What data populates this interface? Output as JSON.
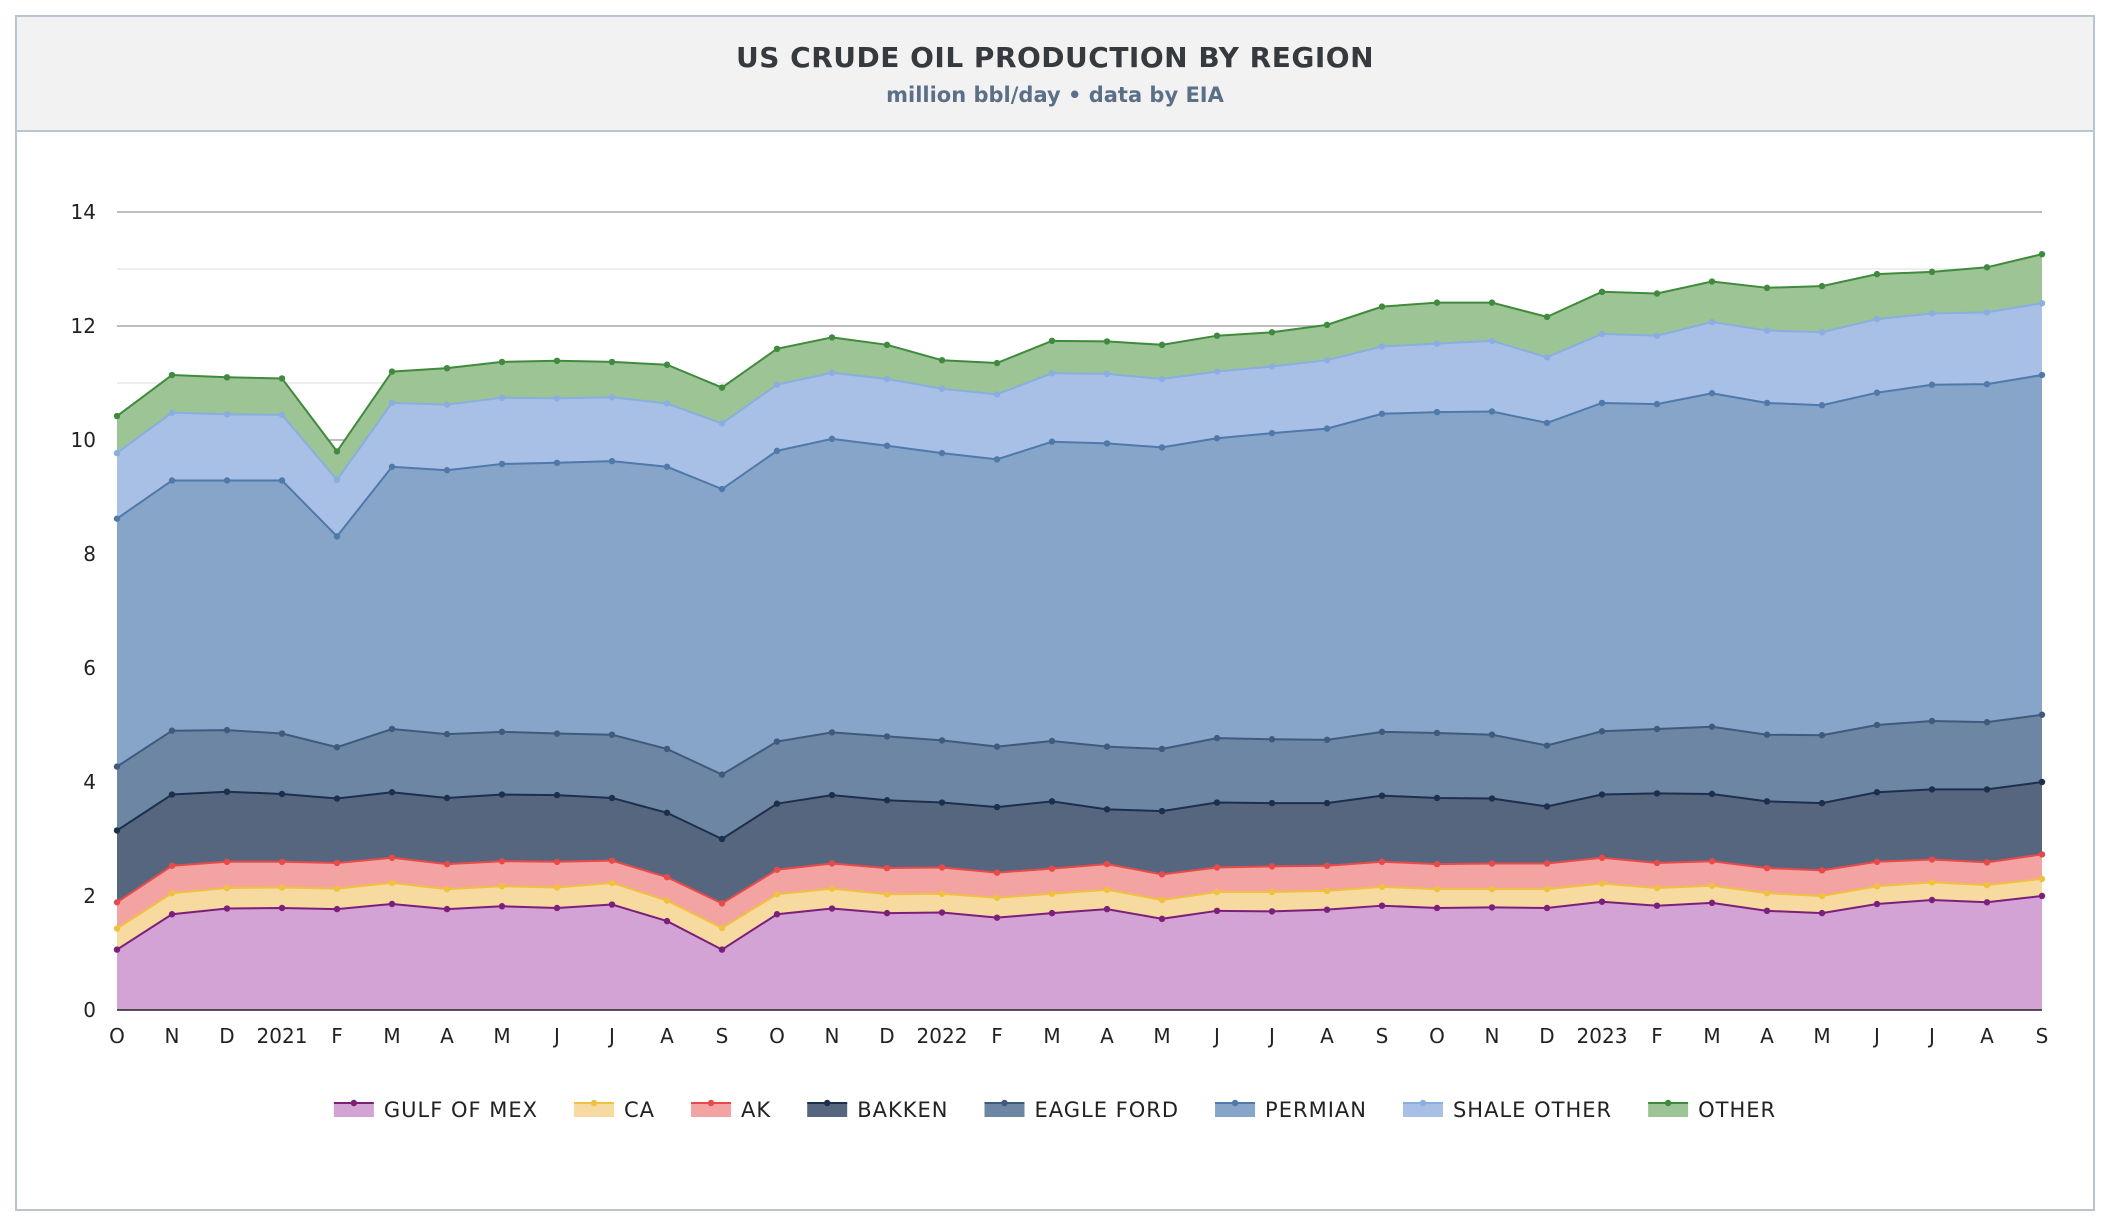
{
  "header": {
    "title": "US CRUDE OIL PRODUCTION BY REGION",
    "subtitle": "million bbl/day • data by EIA"
  },
  "chart_data": {
    "type": "area",
    "stacked": true,
    "title": "US CRUDE OIL PRODUCTION BY REGION",
    "subtitle": "million bbl/day • data by EIA",
    "ylim": [
      0,
      14
    ],
    "y_ticks": [
      0,
      2,
      4,
      6,
      8,
      10,
      12,
      14
    ],
    "grid": true,
    "legend_position": "bottom",
    "categories": [
      "O",
      "N",
      "D",
      "2021",
      "F",
      "M",
      "A",
      "M",
      "J",
      "J",
      "A",
      "S",
      "O",
      "N",
      "D",
      "2022",
      "F",
      "M",
      "A",
      "M",
      "J",
      "J",
      "A",
      "S",
      "O",
      "N",
      "D",
      "2023",
      "F",
      "M",
      "A",
      "M",
      "J",
      "J",
      "A",
      "S"
    ],
    "series": [
      {
        "name": "GULF OF MEX",
        "color": "#7b1f7b",
        "fill": "#d2a3d4",
        "values": [
          1.06,
          1.68,
          1.78,
          1.79,
          1.77,
          1.86,
          1.77,
          1.82,
          1.79,
          1.85,
          1.56,
          1.06,
          1.68,
          1.78,
          1.7,
          1.71,
          1.62,
          1.7,
          1.77,
          1.6,
          1.74,
          1.73,
          1.76,
          1.83,
          1.79,
          1.8,
          1.79,
          1.9,
          1.83,
          1.88,
          1.74,
          1.7,
          1.86,
          1.93,
          1.89,
          2.0
        ]
      },
      {
        "name": "CA",
        "color": "#f0c040",
        "fill": "#f6daa0",
        "values": [
          0.37,
          0.37,
          0.36,
          0.36,
          0.36,
          0.37,
          0.35,
          0.35,
          0.36,
          0.38,
          0.36,
          0.38,
          0.35,
          0.35,
          0.33,
          0.33,
          0.35,
          0.34,
          0.34,
          0.33,
          0.33,
          0.34,
          0.33,
          0.33,
          0.33,
          0.32,
          0.33,
          0.32,
          0.31,
          0.3,
          0.31,
          0.3,
          0.31,
          0.31,
          0.3,
          0.3
        ]
      },
      {
        "name": "AK",
        "color": "#e84a4a",
        "fill": "#f4a3a3",
        "values": [
          0.46,
          0.48,
          0.46,
          0.45,
          0.45,
          0.44,
          0.44,
          0.44,
          0.45,
          0.39,
          0.41,
          0.43,
          0.43,
          0.44,
          0.46,
          0.46,
          0.44,
          0.44,
          0.45,
          0.45,
          0.43,
          0.45,
          0.44,
          0.44,
          0.44,
          0.45,
          0.45,
          0.45,
          0.44,
          0.43,
          0.44,
          0.45,
          0.43,
          0.4,
          0.4,
          0.43
        ]
      },
      {
        "name": "BAKKEN",
        "color": "#1c2f4c",
        "fill": "#56667f",
        "values": [
          1.26,
          1.25,
          1.23,
          1.19,
          1.13,
          1.15,
          1.16,
          1.17,
          1.17,
          1.1,
          1.13,
          1.13,
          1.16,
          1.2,
          1.19,
          1.14,
          1.15,
          1.18,
          0.96,
          1.11,
          1.14,
          1.11,
          1.1,
          1.16,
          1.16,
          1.14,
          1.0,
          1.11,
          1.22,
          1.18,
          1.17,
          1.18,
          1.22,
          1.23,
          1.28,
          1.27
        ]
      },
      {
        "name": "EAGLE FORD",
        "color": "#3f5a7c",
        "fill": "#6d86a4",
        "values": [
          1.12,
          1.12,
          1.08,
          1.06,
          0.9,
          1.11,
          1.12,
          1.1,
          1.08,
          1.11,
          1.12,
          1.13,
          1.09,
          1.1,
          1.12,
          1.09,
          1.06,
          1.06,
          1.1,
          1.09,
          1.13,
          1.12,
          1.11,
          1.12,
          1.14,
          1.12,
          1.07,
          1.11,
          1.13,
          1.18,
          1.17,
          1.19,
          1.18,
          1.2,
          1.18,
          1.18
        ]
      },
      {
        "name": "PERMIAN",
        "color": "#4f79aa",
        "fill": "#86a5c9",
        "values": [
          4.35,
          4.39,
          4.38,
          4.44,
          3.7,
          4.6,
          4.63,
          4.7,
          4.75,
          4.8,
          4.95,
          5.01,
          5.1,
          5.15,
          5.1,
          5.04,
          5.04,
          5.25,
          5.32,
          5.29,
          5.26,
          5.37,
          5.46,
          5.58,
          5.63,
          5.67,
          5.66,
          5.76,
          5.7,
          5.85,
          5.82,
          5.79,
          5.83,
          5.9,
          5.93,
          5.96
        ]
      },
      {
        "name": "SHALE OTHER",
        "color": "#8aaee0",
        "fill": "#a9c0e6",
        "values": [
          1.15,
          1.19,
          1.16,
          1.15,
          0.99,
          1.12,
          1.15,
          1.16,
          1.13,
          1.12,
          1.11,
          1.15,
          1.16,
          1.16,
          1.17,
          1.13,
          1.14,
          1.2,
          1.22,
          1.2,
          1.17,
          1.17,
          1.2,
          1.18,
          1.2,
          1.24,
          1.15,
          1.21,
          1.2,
          1.25,
          1.27,
          1.28,
          1.29,
          1.25,
          1.26,
          1.26
        ]
      },
      {
        "name": "OTHER",
        "color": "#3f8a3c",
        "fill": "#9cc495",
        "values": [
          0.65,
          0.66,
          0.65,
          0.64,
          0.5,
          0.55,
          0.64,
          0.63,
          0.66,
          0.62,
          0.68,
          0.63,
          0.63,
          0.62,
          0.6,
          0.5,
          0.55,
          0.57,
          0.57,
          0.6,
          0.63,
          0.6,
          0.62,
          0.7,
          0.72,
          0.67,
          0.71,
          0.74,
          0.74,
          0.71,
          0.75,
          0.81,
          0.79,
          0.73,
          0.79,
          0.86
        ]
      }
    ]
  }
}
